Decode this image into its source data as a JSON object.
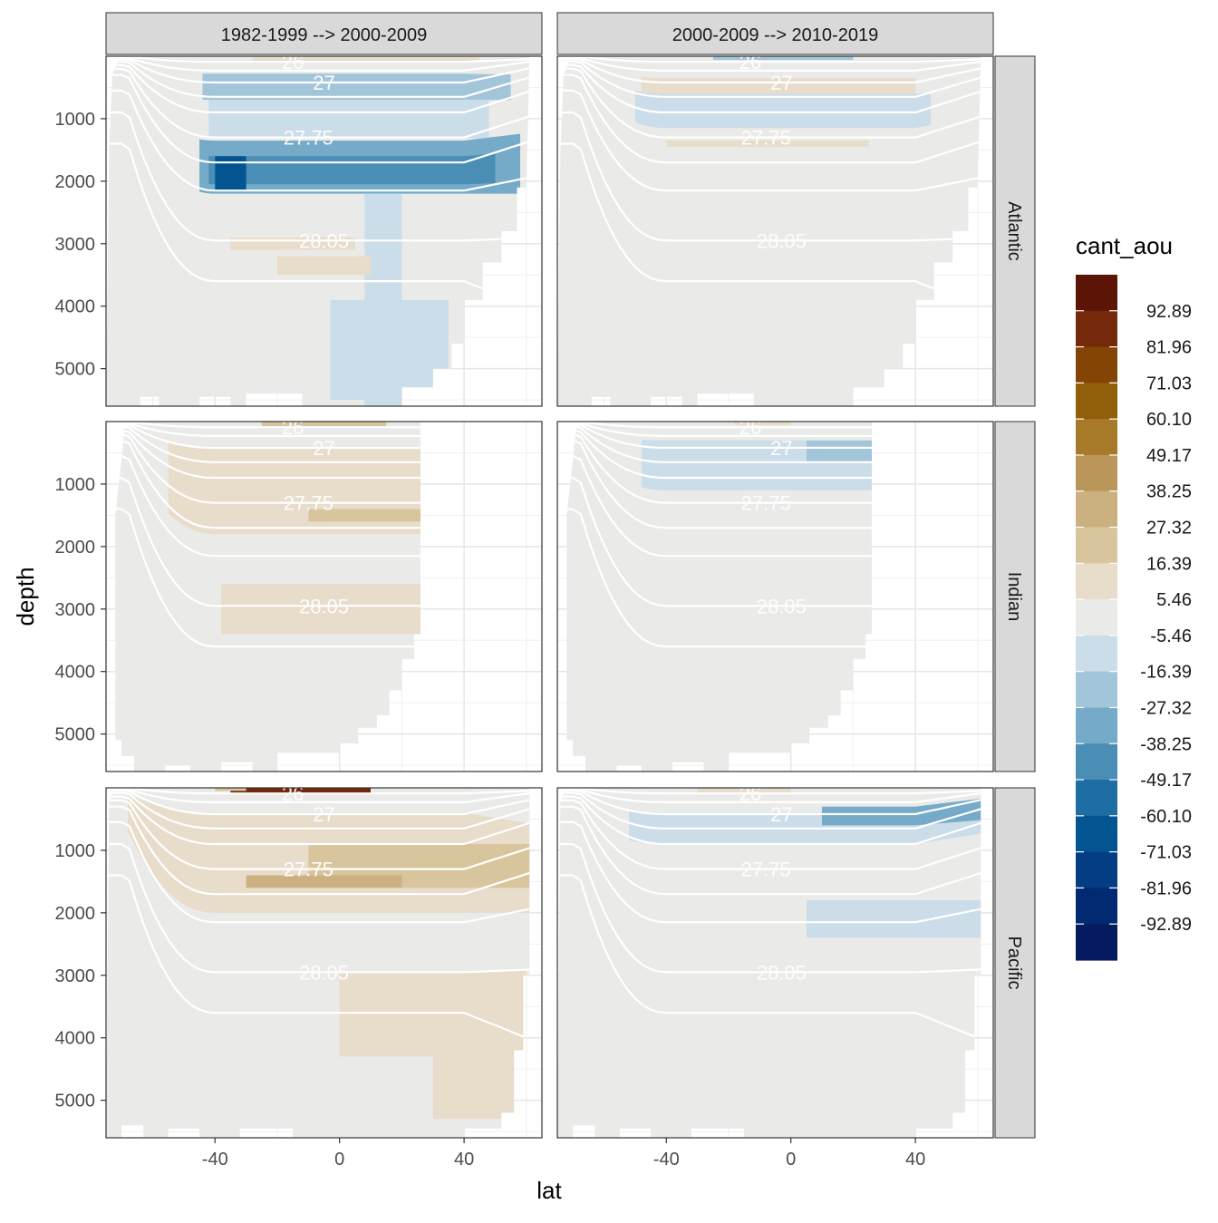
{
  "chart_data": {
    "type": "heatmap",
    "subtype": "faceted filled-contour section (ocean depth vs latitude)",
    "xlabel": "lat",
    "ylabel": "depth",
    "x_ticks": [
      -40,
      0,
      40
    ],
    "y_ticks": [
      1000,
      2000,
      3000,
      4000,
      5000
    ],
    "xlim": [
      -75,
      65
    ],
    "ylim": [
      0,
      5600
    ],
    "y_reversed": true,
    "facet_columns": [
      "1982-1999 --> 2000-2009",
      "2000-2009 --> 2010-2019"
    ],
    "facet_rows": [
      "Atlantic",
      "Indian",
      "Pacific"
    ],
    "legend": {
      "title": "cant_aou",
      "break_labels": [
        "92.89",
        "81.96",
        "71.03",
        "60.10",
        "49.17",
        "38.25",
        "27.32",
        "16.39",
        "5.46",
        "-5.46",
        "-16.39",
        "-27.32",
        "-38.25",
        "-49.17",
        "-60.10",
        "-71.03",
        "-81.96",
        "-92.89"
      ],
      "colors": [
        "#5c1407",
        "#74290a",
        "#834405",
        "#915e0a",
        "#a77a2a",
        "#bb965a",
        "#cbb080",
        "#d9c59d",
        "#e8dccb",
        "#eaebe8",
        "#cbdde9",
        "#a2c5da",
        "#75aac8",
        "#4a8db5",
        "#1e6ea3",
        "#035591",
        "#043d83",
        "#012a73",
        "#041b5f"
      ]
    },
    "isopycnal_labels": [
      "26",
      "27",
      "27.75",
      "28.05"
    ],
    "panels": [
      {
        "row": "Atlantic",
        "col": "1982-1999 --> 2000-2009",
        "summary": "strong negative anomaly (down to about -71) between ~1000-2300 m, negative plume to bottom near 10-20N"
      },
      {
        "row": "Atlantic",
        "col": "2000-2009 --> 2010-2019",
        "summary": "weak mixed anomalies above 1500 m"
      },
      {
        "row": "Indian",
        "col": "1982-1999 --> 2000-2009",
        "summary": "weak to moderate positive anomaly 500-3400 m"
      },
      {
        "row": "Indian",
        "col": "2000-2009 --> 2010-2019",
        "summary": "weak negative anomaly 300-1200 m"
      },
      {
        "row": "Pacific",
        "col": "1982-1999 --> 2000-2009",
        "summary": "positive anomaly at intermediate and deep levels"
      },
      {
        "row": "Pacific",
        "col": "2000-2009 --> 2010-2019",
        "summary": "negative anomaly near 500-900 m and 1800-2400 m"
      }
    ]
  }
}
